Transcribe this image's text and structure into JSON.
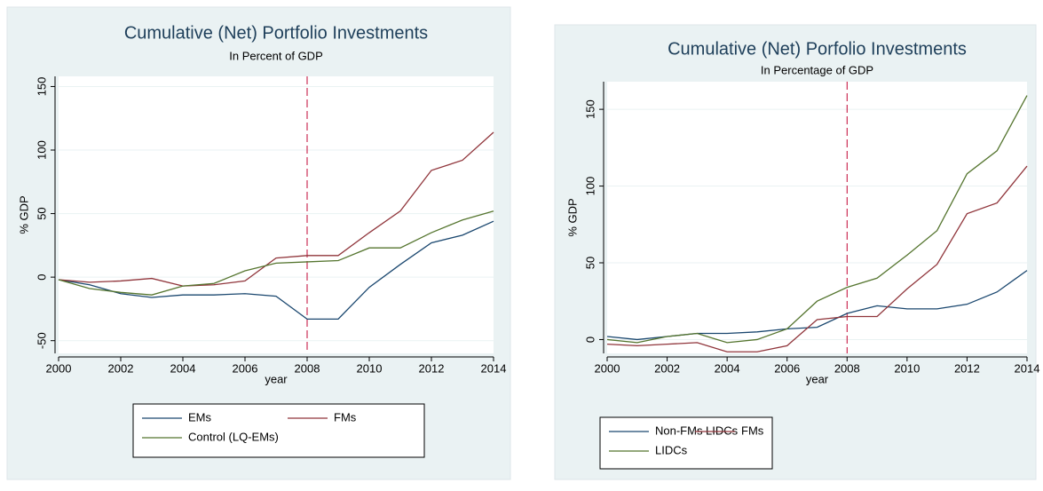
{
  "chart_data": [
    {
      "type": "line",
      "title": "Cumulative (Net) Portfolio Investments",
      "subtitle": "In Percent of GDP",
      "x_label": "year",
      "y_label": "% GDP",
      "x": [
        2000,
        2001,
        2002,
        2003,
        2004,
        2005,
        2006,
        2007,
        2008,
        2009,
        2010,
        2011,
        2012,
        2013,
        2014
      ],
      "series": [
        {
          "name": "EMs",
          "color": "#1a476f",
          "values": [
            -2,
            -6,
            -13,
            -16,
            -14,
            -14,
            -13,
            -15,
            -33,
            -33,
            -8,
            10,
            27,
            33,
            44
          ]
        },
        {
          "name": "FMs",
          "color": "#90353b",
          "values": [
            -2,
            -4,
            -3,
            -1,
            -7,
            -6,
            -3,
            15,
            17,
            17,
            35,
            52,
            84,
            92,
            114
          ]
        },
        {
          "name": "Control (LQ-EMs)",
          "color": "#55752f",
          "values": [
            -2,
            -9,
            -12,
            -14,
            -7,
            -5,
            5,
            11,
            12,
            13,
            23,
            23,
            35,
            45,
            52
          ]
        }
      ],
      "xlim": [
        2000,
        2014
      ],
      "xticks": [
        2000,
        2002,
        2004,
        2006,
        2008,
        2010,
        2012,
        2014
      ],
      "ylim": [
        -60,
        158
      ],
      "yticks": [
        -50,
        0,
        50,
        100,
        150
      ],
      "xline": 2008,
      "xline_color": "#c10534"
    },
    {
      "type": "line",
      "title": "Cumulative (Net) Porfolio Investments",
      "subtitle": "In Percentage of GDP",
      "x_label": "year",
      "y_label": "% GDP",
      "x": [
        2000,
        2001,
        2002,
        2003,
        2004,
        2005,
        2006,
        2007,
        2008,
        2009,
        2010,
        2011,
        2012,
        2013,
        2014
      ],
      "series": [
        {
          "name": "Non-FMs LIDCs",
          "color": "#1a476f",
          "values": [
            2,
            0,
            2,
            4,
            4,
            5,
            7,
            8,
            17,
            22,
            20,
            20,
            23,
            31,
            45
          ]
        },
        {
          "name": "FMs",
          "color": "#90353b",
          "values": [
            -3,
            -4,
            -3,
            -2,
            -8,
            -8,
            -4,
            13,
            15,
            15,
            33,
            49,
            82,
            89,
            113
          ]
        },
        {
          "name": "LIDCs",
          "color": "#55752f",
          "values": [
            0,
            -2,
            2,
            4,
            -2,
            0,
            7,
            25,
            34,
            40,
            55,
            71,
            108,
            123,
            159
          ]
        }
      ],
      "xlim": [
        2000,
        2014
      ],
      "xticks": [
        2000,
        2002,
        2004,
        2006,
        2008,
        2010,
        2012,
        2014
      ],
      "ylim": [
        -9,
        168
      ],
      "yticks": [
        0,
        50,
        100,
        150
      ],
      "xline": 2008,
      "xline_color": "#c10534"
    }
  ]
}
